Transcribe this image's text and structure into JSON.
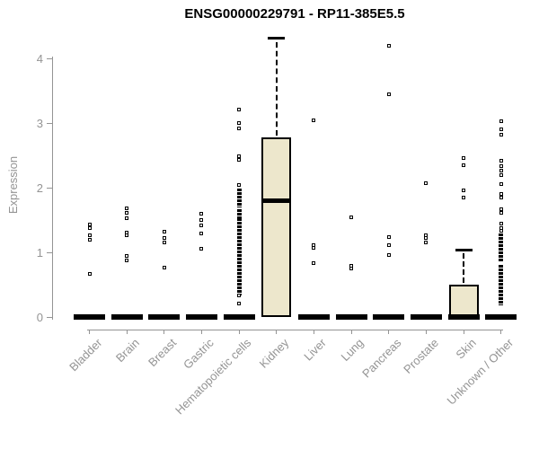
{
  "chart_data": {
    "type": "boxplot-with-points",
    "title": "ENSG00000229791 - RP11-385E5.5",
    "xlabel": "",
    "ylabel": "Expression",
    "ylim": [
      0,
      4.4
    ],
    "yticks": [
      0,
      1,
      2,
      3,
      4
    ],
    "grid": false,
    "legend": "none",
    "box_fill_color": "#EDE7CC",
    "box_border_color": "#000000",
    "axis_color": "#949494",
    "point_color": "#000000",
    "categories": [
      "Bladder",
      "Brain",
      "Breast",
      "Gastric",
      "Hematopoietic cells",
      "Kidney",
      "Liver",
      "Lung",
      "Pancreas",
      "Prostate",
      "Skin",
      "Unknown / Other"
    ],
    "boxplots": [
      {
        "category": "Bladder",
        "q1": 0,
        "median": 0,
        "q3": 0,
        "whisker_low": 0,
        "whisker_high": 0,
        "points": [
          1.43,
          1.38,
          1.27,
          1.2,
          0.67
        ],
        "strips": []
      },
      {
        "category": "Brain",
        "q1": 0,
        "median": 0,
        "q3": 0,
        "whisker_low": 0,
        "whisker_high": 0,
        "points": [
          1.68,
          1.62,
          1.53,
          1.31,
          1.27,
          0.95,
          0.88
        ],
        "strips": []
      },
      {
        "category": "Breast",
        "q1": 0,
        "median": 0,
        "q3": 0,
        "whisker_low": 0,
        "whisker_high": 0,
        "points": [
          1.32,
          1.22,
          1.15,
          0.77
        ],
        "strips": []
      },
      {
        "category": "Gastric",
        "q1": 0,
        "median": 0,
        "q3": 0,
        "whisker_low": 0,
        "whisker_high": 0,
        "points": [
          1.6,
          1.5,
          1.42,
          1.29,
          1.06
        ],
        "strips": []
      },
      {
        "category": "Hematopoietic cells",
        "q1": 0,
        "median": 0,
        "q3": 0,
        "whisker_low": 0,
        "whisker_high": 0,
        "points": [
          3.22,
          3.01,
          2.93,
          2.5,
          2.44,
          2.05,
          0.33,
          0.21
        ],
        "strips": [
          [
            1.96,
            1.72
          ],
          [
            1.65,
            1.56
          ],
          [
            1.51,
            0.36
          ]
        ]
      },
      {
        "category": "Kidney",
        "q1": 0,
        "median": 1.8,
        "q3": 2.78,
        "whisker_low": 0,
        "whisker_high": 4.32,
        "points": [],
        "strips": []
      },
      {
        "category": "Liver",
        "q1": 0,
        "median": 0,
        "q3": 0,
        "whisker_low": 0,
        "whisker_high": 0,
        "points": [
          3.05,
          1.11,
          1.07,
          0.83
        ],
        "strips": []
      },
      {
        "category": "Lung",
        "q1": 0,
        "median": 0,
        "q3": 0,
        "whisker_low": 0,
        "whisker_high": 0,
        "points": [
          1.54,
          0.79,
          0.75
        ],
        "strips": []
      },
      {
        "category": "Pancreas",
        "q1": 0,
        "median": 0,
        "q3": 0,
        "whisker_low": 0,
        "whisker_high": 0,
        "points": [
          4.2,
          3.45,
          1.24,
          1.11,
          0.96
        ],
        "strips": []
      },
      {
        "category": "Prostate",
        "q1": 0,
        "median": 0,
        "q3": 0,
        "whisker_low": 0,
        "whisker_high": 0,
        "points": [
          2.08,
          1.27,
          1.22,
          1.15
        ],
        "strips": []
      },
      {
        "category": "Skin",
        "q1": 0,
        "median": 0,
        "q3": 0.5,
        "whisker_low": 0,
        "whisker_high": 1.04,
        "points": [
          2.46,
          2.36,
          1.96,
          1.85
        ],
        "strips": []
      },
      {
        "category": "Unknown / Other",
        "q1": 0,
        "median": 0,
        "q3": 0,
        "whisker_low": 0,
        "whisker_high": 0,
        "points": [
          3.03,
          2.91,
          2.83,
          2.43,
          2.34,
          2.27,
          2.2,
          2.06,
          1.91,
          1.85,
          1.67,
          1.62,
          1.45,
          1.38,
          1.34
        ],
        "strips": [
          [
            1.27,
            0.88
          ],
          [
            0.78,
            0.43
          ],
          [
            0.39,
            0.21
          ]
        ]
      }
    ]
  }
}
